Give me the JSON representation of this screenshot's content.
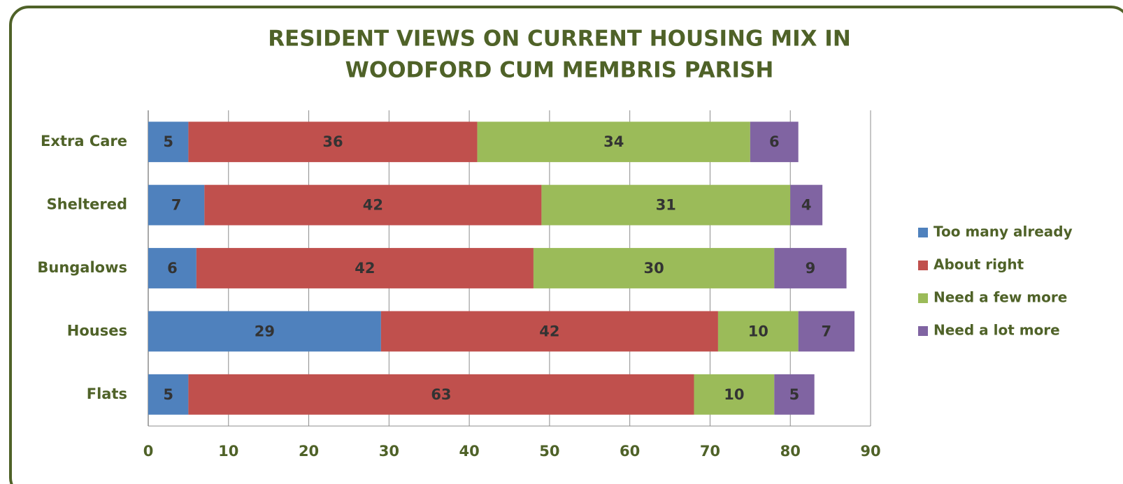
{
  "chart_data": {
    "type": "stacked-bar-horizontal",
    "title": [
      "RESIDENT VIEWS ON CURRENT HOUSING MIX IN",
      "WOODFORD CUM MEMBRIS PARISH"
    ],
    "categories": [
      "Extra Care",
      "Sheltered",
      "Bungalows",
      "Houses",
      "Flats"
    ],
    "series": [
      {
        "name": "Too many already",
        "color": "#4f81bd",
        "values": [
          5,
          7,
          6,
          29,
          5
        ]
      },
      {
        "name": "About right",
        "color": "#c0504d",
        "values": [
          36,
          42,
          42,
          42,
          63
        ]
      },
      {
        "name": "Need a few more",
        "color": "#9bbb59",
        "values": [
          34,
          31,
          30,
          10,
          10
        ]
      },
      {
        "name": "Need a lot more",
        "color": "#8064a2",
        "values": [
          6,
          4,
          9,
          7,
          5
        ]
      }
    ],
    "xlim": [
      0,
      90
    ],
    "xticks": [
      0,
      10,
      20,
      30,
      40,
      50,
      60,
      70,
      80,
      90
    ],
    "grid": true,
    "legend": "right"
  }
}
